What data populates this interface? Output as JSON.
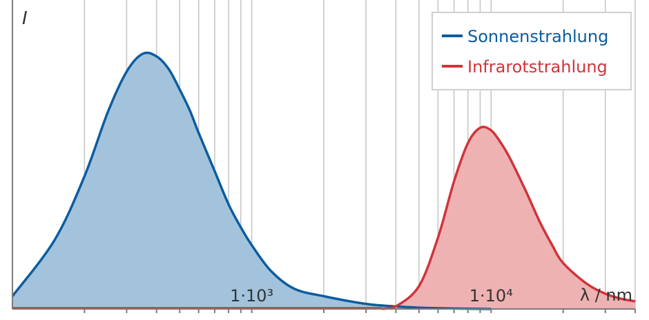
{
  "chart_data": {
    "type": "area",
    "x_scale": "log",
    "xlim": [
      100,
      40000
    ],
    "ylim": [
      0,
      1
    ],
    "grid": true,
    "legend_position": "top-right",
    "ylabel": "I",
    "xlabel": "λ / nm",
    "tick_labels": [
      {
        "value": 1000,
        "label": "1·10³"
      },
      {
        "value": 10000,
        "label": "1·10⁴"
      }
    ],
    "series": [
      {
        "name": "Sonnenstrahlung",
        "color": "#0a5ca0",
        "fill": "#a3c3dc",
        "x": [
          100,
          150,
          200,
          250,
          300,
          350,
          400,
          450,
          500,
          550,
          600,
          700,
          800,
          900,
          1000,
          1200,
          1500,
          2000,
          3000,
          4000,
          5000,
          6000,
          8000,
          10000
        ],
        "y": [
          0.05,
          0.27,
          0.52,
          0.77,
          0.93,
          1.0,
          0.99,
          0.94,
          0.86,
          0.78,
          0.69,
          0.54,
          0.41,
          0.32,
          0.25,
          0.15,
          0.08,
          0.05,
          0.02,
          0.01,
          0.005,
          0.003,
          0.001,
          0.0
        ]
      },
      {
        "name": "Infrarotstrahlung",
        "color": "#d0343a",
        "fill": "#efb2b3",
        "x": [
          3500,
          4000,
          5000,
          6000,
          7000,
          8000,
          9000,
          10000,
          11000,
          12000,
          14000,
          16000,
          18000,
          20000,
          25000,
          30000,
          35000,
          40000
        ],
        "y": [
          0.0,
          0.01,
          0.09,
          0.28,
          0.5,
          0.65,
          0.71,
          0.7,
          0.65,
          0.59,
          0.46,
          0.34,
          0.25,
          0.18,
          0.1,
          0.06,
          0.04,
          0.03
        ]
      }
    ]
  }
}
